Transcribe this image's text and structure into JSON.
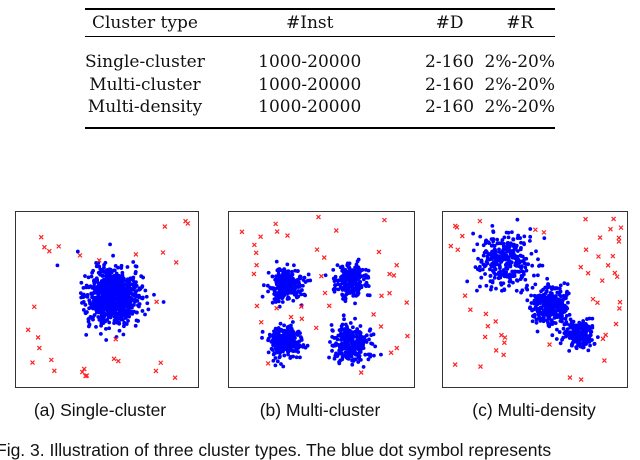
{
  "table": {
    "headers": [
      "Cluster type",
      "#Inst",
      "#D",
      "#R"
    ],
    "rows": [
      [
        "Single-cluster",
        "1000-20000",
        "2-160",
        "2%-20%"
      ],
      [
        "Multi-cluster",
        "1000-20000",
        "2-160",
        "2%-20%"
      ],
      [
        "Multi-density",
        "1000-20000",
        "2-160",
        "2%-20%"
      ]
    ]
  },
  "panels": [
    {
      "caption": "(a) Single-cluster"
    },
    {
      "caption": "(b) Multi-cluster"
    },
    {
      "caption": "(c) Multi-density"
    }
  ],
  "figure_caption": "Fig. 3. Illustration of three cluster types. The blue dot symbol represents",
  "colors": {
    "inlier": "#0000ff",
    "outlier": "#ff2020"
  }
}
